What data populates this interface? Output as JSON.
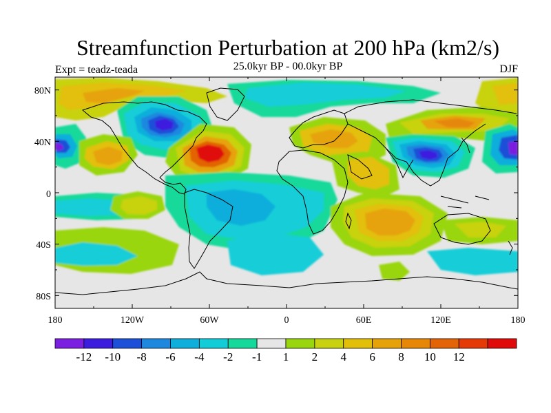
{
  "title": "Streamfunction Perturbation at 200 hPa (km2/s)",
  "subtitle_left": "Expt = teadz-teada",
  "subtitle_center": "25.0kyr BP - 00.0kyr BP",
  "subtitle_right": "DJF",
  "axes": {
    "lat_ticks": [
      "80N",
      "40N",
      "0",
      "40S",
      "80S"
    ],
    "lon_ticks": [
      "180",
      "120W",
      "60W",
      "0",
      "60E",
      "120E",
      "180"
    ]
  },
  "colorbar": {
    "colors": [
      "#7b1fe0",
      "#3c1de0",
      "#1e4fd8",
      "#1e88df",
      "#10aedb",
      "#12cdd8",
      "#14d99a",
      "#e6e6e6",
      "#9ad60e",
      "#c8d210",
      "#e2c00a",
      "#e6a309",
      "#e68708",
      "#e26406",
      "#e63a06",
      "#e00a0a"
    ],
    "labels": [
      "-12",
      "-10",
      "-8",
      "-6",
      "-4",
      "-2",
      "-1",
      "1",
      "2",
      "4",
      "6",
      "8",
      "10",
      "12"
    ]
  },
  "field_colors": {
    "neutral": "#e6e6e6",
    "pos2": "#9ad60e",
    "pos4": "#c8d210",
    "pos6": "#e2c00a",
    "pos8": "#e6a309",
    "pos10": "#e68708",
    "pos12": "#e26406",
    "pos14": "#e63a06",
    "pos16": "#e00a0a",
    "neg1": "#14d99a",
    "neg2": "#12cdd8",
    "neg4": "#10aedb",
    "neg6": "#1e88df",
    "neg8": "#1e4fd8",
    "neg10": "#3c1de0",
    "neg12": "#7b1fe0"
  }
}
